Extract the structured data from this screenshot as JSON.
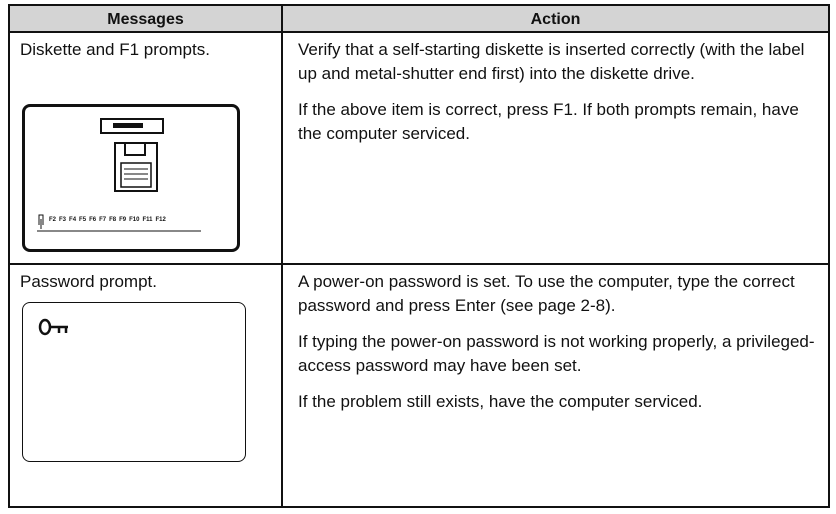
{
  "table": {
    "headers": [
      "Messages",
      "Action"
    ],
    "rows": [
      {
        "message": "Diskette and F1 prompts.",
        "actions": [
          "Verify that a self-starting diskette is inserted correctly (with the label up and metal-shutter end first) into the diskette drive.",
          "If the above item is correct, press F1.  If both prompts remain, have the computer serviced."
        ],
        "keys": [
          "F2",
          "F3",
          "F4",
          "F5",
          "F6",
          "F7",
          "F8",
          "F9",
          "F10",
          "F11",
          "F12"
        ]
      },
      {
        "message": "Password prompt.",
        "actions": [
          "A power-on password is set.  To use the computer, type the correct password and press Enter (see page 2-8).",
          "If typing the power-on password is not working properly, a privileged-access password may have been set.",
          "If the problem still exists, have the computer serviced."
        ]
      }
    ]
  }
}
